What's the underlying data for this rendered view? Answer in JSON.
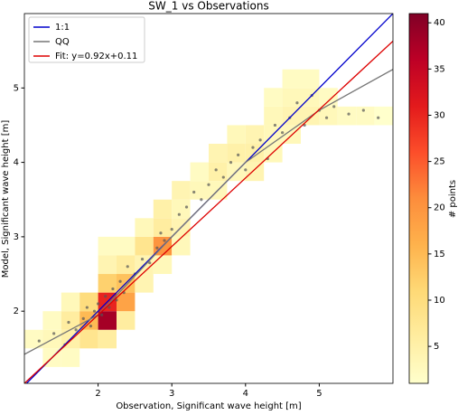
{
  "chart_data": {
    "type": "hist2d",
    "title": "SW_1 vs Observations",
    "xlabel": "Observation, Significant wave height [m]",
    "ylabel": "Model, Significant wave height [m]",
    "xlim": [
      1.0,
      6.0
    ],
    "ylim": [
      1.03,
      6.0
    ],
    "xticks": [
      2,
      3,
      4,
      5
    ],
    "yticks": [
      2,
      3,
      4,
      5
    ],
    "bin_width": 0.25,
    "cells": [
      {
        "x": 1.0,
        "y": 1.5,
        "count": 2
      },
      {
        "x": 1.25,
        "y": 1.5,
        "count": 3
      },
      {
        "x": 1.25,
        "y": 1.75,
        "count": 2
      },
      {
        "x": 1.25,
        "y": 1.25,
        "count": 2
      },
      {
        "x": 1.5,
        "y": 1.25,
        "count": 2
      },
      {
        "x": 1.5,
        "y": 1.5,
        "count": 5
      },
      {
        "x": 1.5,
        "y": 1.75,
        "count": 6
      },
      {
        "x": 1.5,
        "y": 2.0,
        "count": 3
      },
      {
        "x": 1.75,
        "y": 1.5,
        "count": 8
      },
      {
        "x": 1.75,
        "y": 1.75,
        "count": 15
      },
      {
        "x": 1.75,
        "y": 2.0,
        "count": 10
      },
      {
        "x": 2.0,
        "y": 1.5,
        "count": 6
      },
      {
        "x": 2.0,
        "y": 1.75,
        "count": 38
      },
      {
        "x": 2.0,
        "y": 2.0,
        "count": 30
      },
      {
        "x": 2.0,
        "y": 2.25,
        "count": 12
      },
      {
        "x": 2.0,
        "y": 2.5,
        "count": 4
      },
      {
        "x": 2.0,
        "y": 2.75,
        "count": 2
      },
      {
        "x": 2.25,
        "y": 1.75,
        "count": 6
      },
      {
        "x": 2.25,
        "y": 2.0,
        "count": 18
      },
      {
        "x": 2.25,
        "y": 2.25,
        "count": 14
      },
      {
        "x": 2.25,
        "y": 2.5,
        "count": 6
      },
      {
        "x": 2.25,
        "y": 2.75,
        "count": 2
      },
      {
        "x": 2.5,
        "y": 2.25,
        "count": 4
      },
      {
        "x": 2.5,
        "y": 2.5,
        "count": 4
      },
      {
        "x": 2.5,
        "y": 2.75,
        "count": 8
      },
      {
        "x": 2.5,
        "y": 3.0,
        "count": 3
      },
      {
        "x": 2.75,
        "y": 2.5,
        "count": 3
      },
      {
        "x": 2.75,
        "y": 2.75,
        "count": 20
      },
      {
        "x": 2.75,
        "y": 3.0,
        "count": 6
      },
      {
        "x": 2.75,
        "y": 3.25,
        "count": 5
      },
      {
        "x": 3.0,
        "y": 2.75,
        "count": 3
      },
      {
        "x": 3.0,
        "y": 3.0,
        "count": 4
      },
      {
        "x": 3.0,
        "y": 3.25,
        "count": 3
      },
      {
        "x": 3.0,
        "y": 3.5,
        "count": 4
      },
      {
        "x": 3.25,
        "y": 3.5,
        "count": 3
      },
      {
        "x": 3.25,
        "y": 3.75,
        "count": 2
      },
      {
        "x": 3.5,
        "y": 3.5,
        "count": 3
      },
      {
        "x": 3.5,
        "y": 3.75,
        "count": 5
      },
      {
        "x": 3.5,
        "y": 4.0,
        "count": 4
      },
      {
        "x": 3.75,
        "y": 3.75,
        "count": 3
      },
      {
        "x": 3.75,
        "y": 4.0,
        "count": 5
      },
      {
        "x": 3.75,
        "y": 4.25,
        "count": 3
      },
      {
        "x": 4.0,
        "y": 3.75,
        "count": 4
      },
      {
        "x": 4.0,
        "y": 4.0,
        "count": 5
      },
      {
        "x": 4.0,
        "y": 4.25,
        "count": 4
      },
      {
        "x": 4.25,
        "y": 4.0,
        "count": 3
      },
      {
        "x": 4.25,
        "y": 4.25,
        "count": 3
      },
      {
        "x": 4.25,
        "y": 4.5,
        "count": 3
      },
      {
        "x": 4.25,
        "y": 4.75,
        "count": 2
      },
      {
        "x": 4.5,
        "y": 4.25,
        "count": 3
      },
      {
        "x": 4.5,
        "y": 4.5,
        "count": 4
      },
      {
        "x": 4.5,
        "y": 4.75,
        "count": 3
      },
      {
        "x": 4.5,
        "y": 5.0,
        "count": 2
      },
      {
        "x": 4.75,
        "y": 4.5,
        "count": 4
      },
      {
        "x": 4.75,
        "y": 4.75,
        "count": 3
      },
      {
        "x": 4.75,
        "y": 5.0,
        "count": 2
      },
      {
        "x": 5.0,
        "y": 4.5,
        "count": 3
      },
      {
        "x": 5.0,
        "y": 4.75,
        "count": 2
      },
      {
        "x": 5.25,
        "y": 4.5,
        "count": 2
      },
      {
        "x": 5.5,
        "y": 4.5,
        "count": 2
      },
      {
        "x": 5.75,
        "y": 4.5,
        "count": 1
      }
    ],
    "points": {
      "color": "#555555",
      "x": [
        1.2,
        1.4,
        1.55,
        1.6,
        1.7,
        1.8,
        1.85,
        1.9,
        1.95,
        2.0,
        2.05,
        2.1,
        2.15,
        2.2,
        2.25,
        2.3,
        2.35,
        2.4,
        2.5,
        2.6,
        2.7,
        2.8,
        2.85,
        2.9,
        3.0,
        3.1,
        3.2,
        3.3,
        3.4,
        3.5,
        3.6,
        3.7,
        3.8,
        3.9,
        4.0,
        4.1,
        4.2,
        4.3,
        4.4,
        4.5,
        4.6,
        4.7,
        4.8,
        4.9,
        5.0,
        5.1,
        5.2,
        5.4,
        5.6,
        5.8
      ],
      "y": [
        1.6,
        1.7,
        1.55,
        1.85,
        1.75,
        1.9,
        2.05,
        1.8,
        2.0,
        2.1,
        1.95,
        2.2,
        2.05,
        2.3,
        2.15,
        2.4,
        2.25,
        2.6,
        2.5,
        2.7,
        2.65,
        2.85,
        3.05,
        2.95,
        3.1,
        3.3,
        3.4,
        3.6,
        3.5,
        3.7,
        3.9,
        3.8,
        4.0,
        4.1,
        3.9,
        4.2,
        4.3,
        4.05,
        4.5,
        4.4,
        4.6,
        4.8,
        4.5,
        4.9,
        4.7,
        4.6,
        4.75,
        4.65,
        4.7,
        4.6
      ]
    },
    "series": [
      {
        "name": "1:1",
        "color": "#0000cc",
        "x": [
          1.03,
          6.0
        ],
        "values": [
          1.03,
          6.0
        ]
      },
      {
        "name": "QQ",
        "color": "#777777",
        "x": [
          1.0,
          2.0,
          3.0,
          3.5,
          4.0,
          5.0,
          6.0
        ],
        "values": [
          1.42,
          1.95,
          3.0,
          3.5,
          4.0,
          4.7,
          5.25
        ]
      },
      {
        "name": "Fit: y=0.92x+0.11",
        "color": "#dd0000",
        "x": [
          1.0,
          6.0
        ],
        "values": [
          1.03,
          5.63
        ]
      }
    ],
    "colorbar": {
      "label": "# points",
      "clim": [
        1,
        41
      ],
      "ticks": [
        5,
        10,
        15,
        20,
        25,
        30,
        35,
        40
      ],
      "colormap": [
        "#ffffcc",
        "#ffeda0",
        "#fed976",
        "#feb24c",
        "#fd8d3c",
        "#fc4e2a",
        "#e31a1c",
        "#bd0026",
        "#800026"
      ]
    }
  }
}
